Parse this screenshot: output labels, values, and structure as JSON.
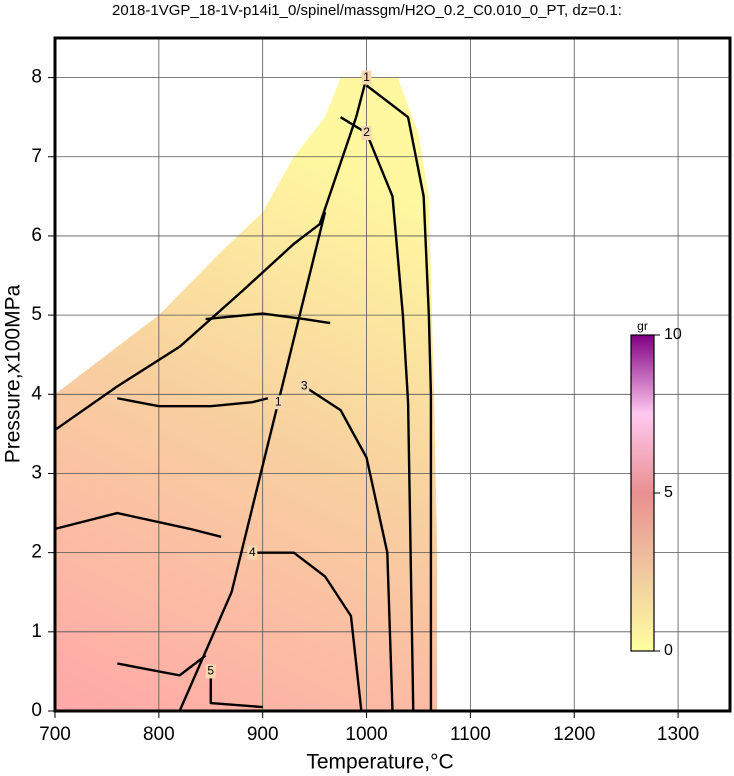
{
  "chart_data": {
    "type": "contour",
    "title": "2018-1VGP_18-1V-p14i1_0/spinel/massgm/H2O_0.2_C0.010_0_PT, dz=0.1:",
    "x_label": "Temperature,°C",
    "y_label": "Pressure,x100MPa",
    "xlim": [
      700,
      1350
    ],
    "ylim": [
      0,
      8.5
    ],
    "xticks": [
      700,
      800,
      900,
      1000,
      1100,
      1200,
      1300
    ],
    "yticks": [
      0,
      1,
      2,
      3,
      4,
      5,
      6,
      7,
      8
    ],
    "grid": true,
    "region": {
      "x": [
        700,
        700,
        760,
        800,
        860,
        900,
        930,
        960,
        975,
        1030,
        1050,
        1060,
        1065,
        1068,
        1068,
        700
      ],
      "y": [
        3.5,
        4.0,
        4.6,
        5.0,
        5.8,
        6.3,
        7.0,
        7.5,
        8.0,
        8.0,
        7.3,
        6.5,
        4.0,
        2.0,
        0,
        0
      ]
    },
    "contours": [
      {
        "level": 1,
        "x": [
          700,
          760,
          820,
          880,
          930,
          955,
          990,
          1000,
          null,
          1000,
          1040,
          1055,
          1060,
          1062,
          1062
        ],
        "y": [
          3.55,
          4.1,
          4.6,
          5.3,
          5.9,
          6.15,
          7.5,
          8.0,
          null,
          7.9,
          7.5,
          6.5,
          5.0,
          4.0,
          0
        ]
      },
      {
        "level": 2,
        "x": [
          845,
          900,
          940,
          965,
          null,
          975,
          1000,
          1025,
          1035,
          1040,
          1045
        ],
        "y": [
          4.95,
          5.02,
          4.95,
          4.9,
          null,
          7.5,
          7.3,
          6.5,
          5.0,
          3.9,
          0
        ]
      },
      {
        "level": 3,
        "x": [
          760,
          800,
          850,
          890,
          905,
          null,
          940,
          975,
          1000,
          1020,
          1025
        ],
        "y": [
          3.95,
          3.85,
          3.85,
          3.9,
          3.95,
          null,
          4.1,
          3.8,
          3.2,
          2.0,
          0
        ]
      },
      {
        "level": 4,
        "x": [
          700,
          760,
          830,
          860,
          null,
          890,
          930,
          960,
          985,
          995
        ],
        "y": [
          2.3,
          2.5,
          2.3,
          2.2,
          null,
          2.0,
          2.0,
          1.7,
          1.2,
          0
        ]
      },
      {
        "level": 5,
        "x": [
          760,
          820,
          845,
          null,
          850,
          850,
          900
        ],
        "y": [
          0.6,
          0.45,
          0.7,
          null,
          0.5,
          0.1,
          0.05
        ]
      },
      {
        "level": 1,
        "x": [
          820,
          870,
          915,
          960
        ],
        "y": [
          0,
          1.5,
          3.9,
          6.3
        ]
      }
    ],
    "colorbar": {
      "label": "gr",
      "lim": [
        0,
        10
      ],
      "ticks": [
        0,
        5,
        10
      ],
      "colors": [
        "#ffffa0",
        "#f0c8a0",
        "#e89090",
        "#ffc8f0",
        "#800080"
      ]
    }
  }
}
